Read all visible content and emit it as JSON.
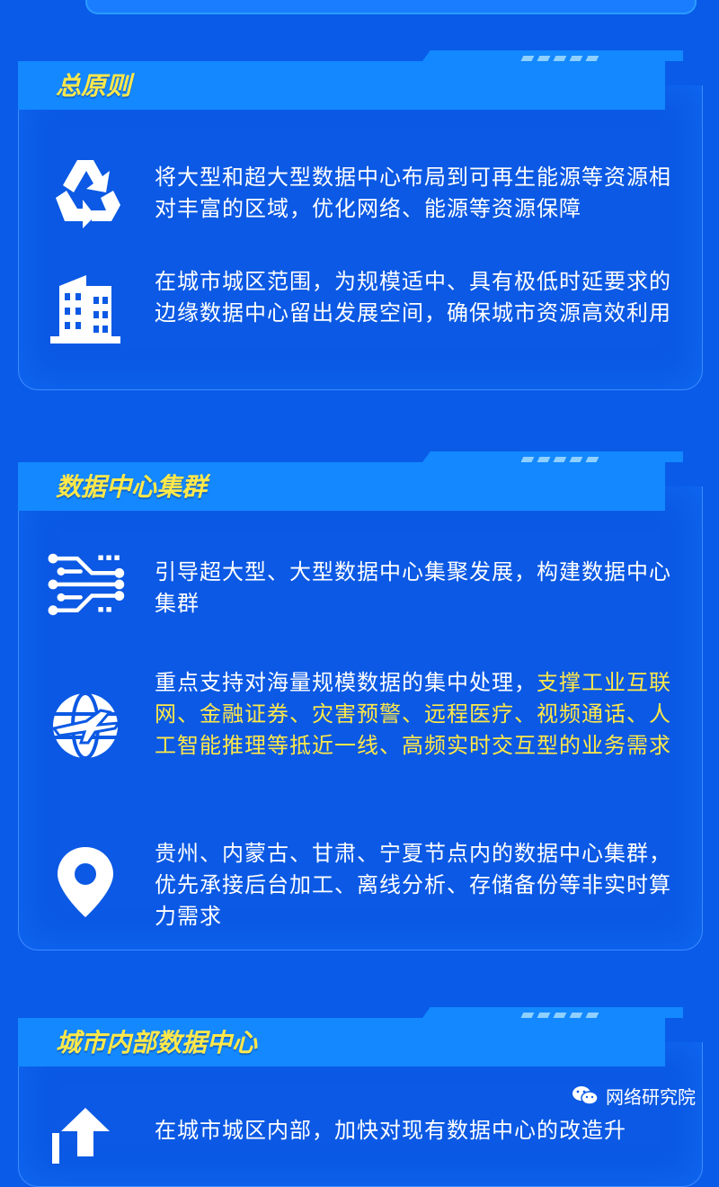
{
  "sections": [
    {
      "title": "总原则",
      "items": [
        {
          "icon": "recycle-icon",
          "text": "将大型和超大型数据中心布局到可再生能源等资源相对丰富的区域，优化网络、能源等资源保障",
          "highlight": ""
        },
        {
          "icon": "building-icon",
          "text": "在城市城区范围，为规模适中、具有极低时延要求的边缘数据中心留出发展空间，确保城市资源高效利用",
          "highlight": ""
        }
      ]
    },
    {
      "title": "数据中心集群",
      "items": [
        {
          "icon": "network-circuit-icon",
          "text": "引导超大型、大型数据中心集聚发展，构建数据中心集群",
          "highlight": ""
        },
        {
          "icon": "globe-airplane-icon",
          "text": "重点支持对海量规模数据的集中处理，",
          "highlight": "支撑工业互联网、金融证券、灾害预警、远程医疗、视频通话、人工智能推理等抵近一线、高频实时交互型的业务需求"
        },
        {
          "icon": "location-pin-icon",
          "text": "贵州、内蒙古、甘肃、宁夏节点内的数据中心集群，优先承接后台加工、离线分析、存储备份等非实时算力需求",
          "highlight": ""
        }
      ]
    },
    {
      "title": "城市内部数据中心",
      "items": [
        {
          "icon": "upload-arrow-icon",
          "text": "在城市城区内部，加快对现有数据中心的改造升",
          "highlight": ""
        }
      ]
    }
  ],
  "watermark": {
    "text": "网络研究院",
    "icon": "wechat-icon"
  },
  "colors": {
    "background": "#0a5be8",
    "header": "#1388ff",
    "highlight": "#ffe84a",
    "border": "#3f8cff"
  }
}
